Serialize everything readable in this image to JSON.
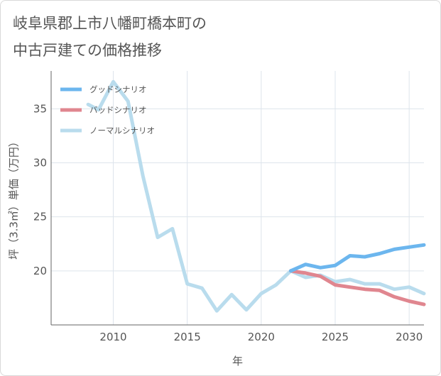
{
  "chart_data": {
    "type": "line",
    "title_lines": [
      "岐阜県郡上市八幡町橋本町の",
      "中古戸建ての価格推移"
    ],
    "xlabel": "年",
    "ylabel": "坪（3.3㎡）単価（万円）",
    "xlim": [
      2005.8,
      2031
    ],
    "ylim": [
      15.0,
      38.5
    ],
    "x_ticks": [
      2010,
      2015,
      2020,
      2025,
      2030
    ],
    "y_ticks": [
      20,
      25,
      30,
      35
    ],
    "grid": true,
    "legend_position": "top-left",
    "series": [
      {
        "name": "グッドシナリオ",
        "color": "#6cb6ee",
        "x": [
          2022,
          2023,
          2024,
          2025,
          2026,
          2027,
          2028,
          2029,
          2030,
          2031
        ],
        "y": [
          20.0,
          20.6,
          20.3,
          20.5,
          21.4,
          21.3,
          21.6,
          22.0,
          22.2,
          22.4
        ]
      },
      {
        "name": "バッドシナリオ",
        "color": "#e0868f",
        "x": [
          2022,
          2023,
          2024,
          2025,
          2026,
          2027,
          2028,
          2029,
          2030,
          2031
        ],
        "y": [
          20.0,
          19.8,
          19.5,
          18.7,
          18.5,
          18.3,
          18.2,
          17.6,
          17.2,
          16.9
        ]
      },
      {
        "name": "ノーマルシナリオ",
        "color": "#b9dced",
        "x": [
          2008.3,
          2009,
          2010,
          2011,
          2012,
          2013,
          2014,
          2015,
          2016,
          2017,
          2018,
          2019,
          2020,
          2021,
          2022,
          2023,
          2024,
          2025,
          2026,
          2027,
          2028,
          2029,
          2030,
          2031
        ],
        "y": [
          35.4,
          34.9,
          37.5,
          35.7,
          28.8,
          23.1,
          23.9,
          18.8,
          18.4,
          16.3,
          17.8,
          16.4,
          17.9,
          18.7,
          20.0,
          19.4,
          19.6,
          19.0,
          19.2,
          18.8,
          18.8,
          18.3,
          18.5,
          17.9
        ]
      }
    ]
  }
}
